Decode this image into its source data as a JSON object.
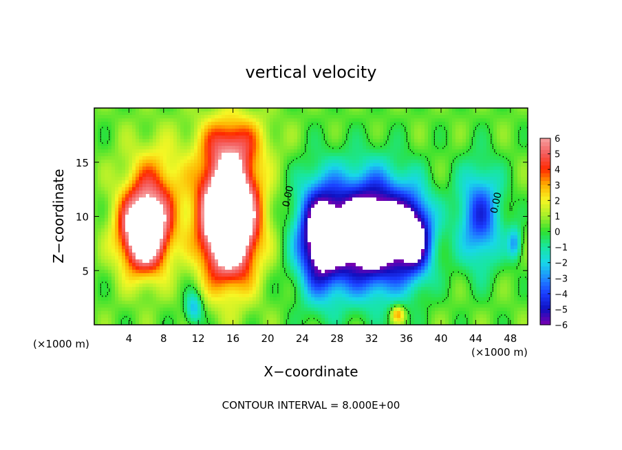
{
  "chart_data": {
    "type": "heatmap",
    "title": "vertical velocity",
    "xlabel": "X−coordinate",
    "ylabel": "Z−coordinate",
    "x_unit": "(×1000 m)",
    "x_unit_right": "(×1000 m)",
    "footer": "CONTOUR INTERVAL = 8.000E+00",
    "xlim": [
      0,
      50
    ],
    "ylim": [
      0,
      20
    ],
    "x_ticks": [
      4,
      8,
      12,
      16,
      20,
      24,
      28,
      32,
      36,
      40,
      44,
      48
    ],
    "y_ticks": [
      5,
      10,
      15
    ],
    "colorbar": {
      "vmin": -6,
      "vmax": 6,
      "tick_values": [
        6,
        5,
        4,
        3,
        2,
        1,
        0,
        -1,
        -2,
        -3,
        -4,
        -5,
        -6
      ],
      "tick_labels": [
        "6",
        "5",
        "4",
        "3",
        "2",
        "1",
        "0",
        "−1",
        "−2",
        "−3",
        "−4",
        "−5",
        "−6"
      ],
      "stops": [
        {
          "v": -6,
          "c": "#7a00b0"
        },
        {
          "v": -5,
          "c": "#1010c0"
        },
        {
          "v": -4,
          "c": "#1a3dff"
        },
        {
          "v": -3,
          "c": "#1f8cff"
        },
        {
          "v": -2,
          "c": "#18d7e8"
        },
        {
          "v": -1,
          "c": "#18e6a0"
        },
        {
          "v": 0,
          "c": "#2fe02f"
        },
        {
          "v": 1,
          "c": "#a6ef2a"
        },
        {
          "v": 2,
          "c": "#f6f624"
        },
        {
          "v": 3,
          "c": "#ffb000"
        },
        {
          "v": 4,
          "c": "#ff2a00"
        },
        {
          "v": 5,
          "c": "#f45c5c"
        },
        {
          "v": 6,
          "c": "#f6a0a0"
        }
      ]
    },
    "contour_labels": [
      {
        "text": "0.00",
        "x": 22.7,
        "z": 11.8
      },
      {
        "text": "0.00",
        "x": 46.7,
        "z": 11.2
      }
    ],
    "features": [
      {
        "name": "updraft-left",
        "x": 5.8,
        "z": 8.5,
        "sx": 2.8,
        "sz": 3.6,
        "amp": 9
      },
      {
        "name": "updraft-center",
        "x": 15.5,
        "z": 10.0,
        "sx": 3.2,
        "sz": 5.5,
        "amp": 12
      },
      {
        "name": "downdraft-main",
        "x": 32.0,
        "z": 8.5,
        "sx": 5.0,
        "sz": 5.0,
        "amp": -10
      },
      {
        "name": "downdraft-left",
        "x": 26.0,
        "z": 8.0,
        "sx": 2.6,
        "sz": 5.0,
        "amp": -7
      },
      {
        "name": "downdraft-right",
        "x": 44.5,
        "z": 10.0,
        "sx": 2.5,
        "sz": 4.5,
        "amp": -4.5
      },
      {
        "name": "downdraft-core",
        "x": 37.0,
        "z": 8.0,
        "sx": 2.0,
        "sz": 3.5,
        "amp": -5
      },
      {
        "name": "upper-halo-left",
        "x": 7.0,
        "z": 13.0,
        "sx": 3.5,
        "sz": 4.0,
        "amp": 2.5
      },
      {
        "name": "upper-halo-center",
        "x": 16.0,
        "z": 17.0,
        "sx": 4.0,
        "sz": 2.5,
        "amp": 2.5
      },
      {
        "name": "updraft-small-right",
        "x": 48.5,
        "z": 7.5,
        "sx": 0.8,
        "sz": 1.5,
        "amp": -3
      },
      {
        "name": "surface-blue",
        "x": 11.5,
        "z": 1.5,
        "sx": 1.0,
        "sz": 1.5,
        "amp": -3
      },
      {
        "name": "surface-warm",
        "x": 35.0,
        "z": 1.0,
        "sx": 0.8,
        "sz": 0.8,
        "amp": 3
      }
    ]
  }
}
